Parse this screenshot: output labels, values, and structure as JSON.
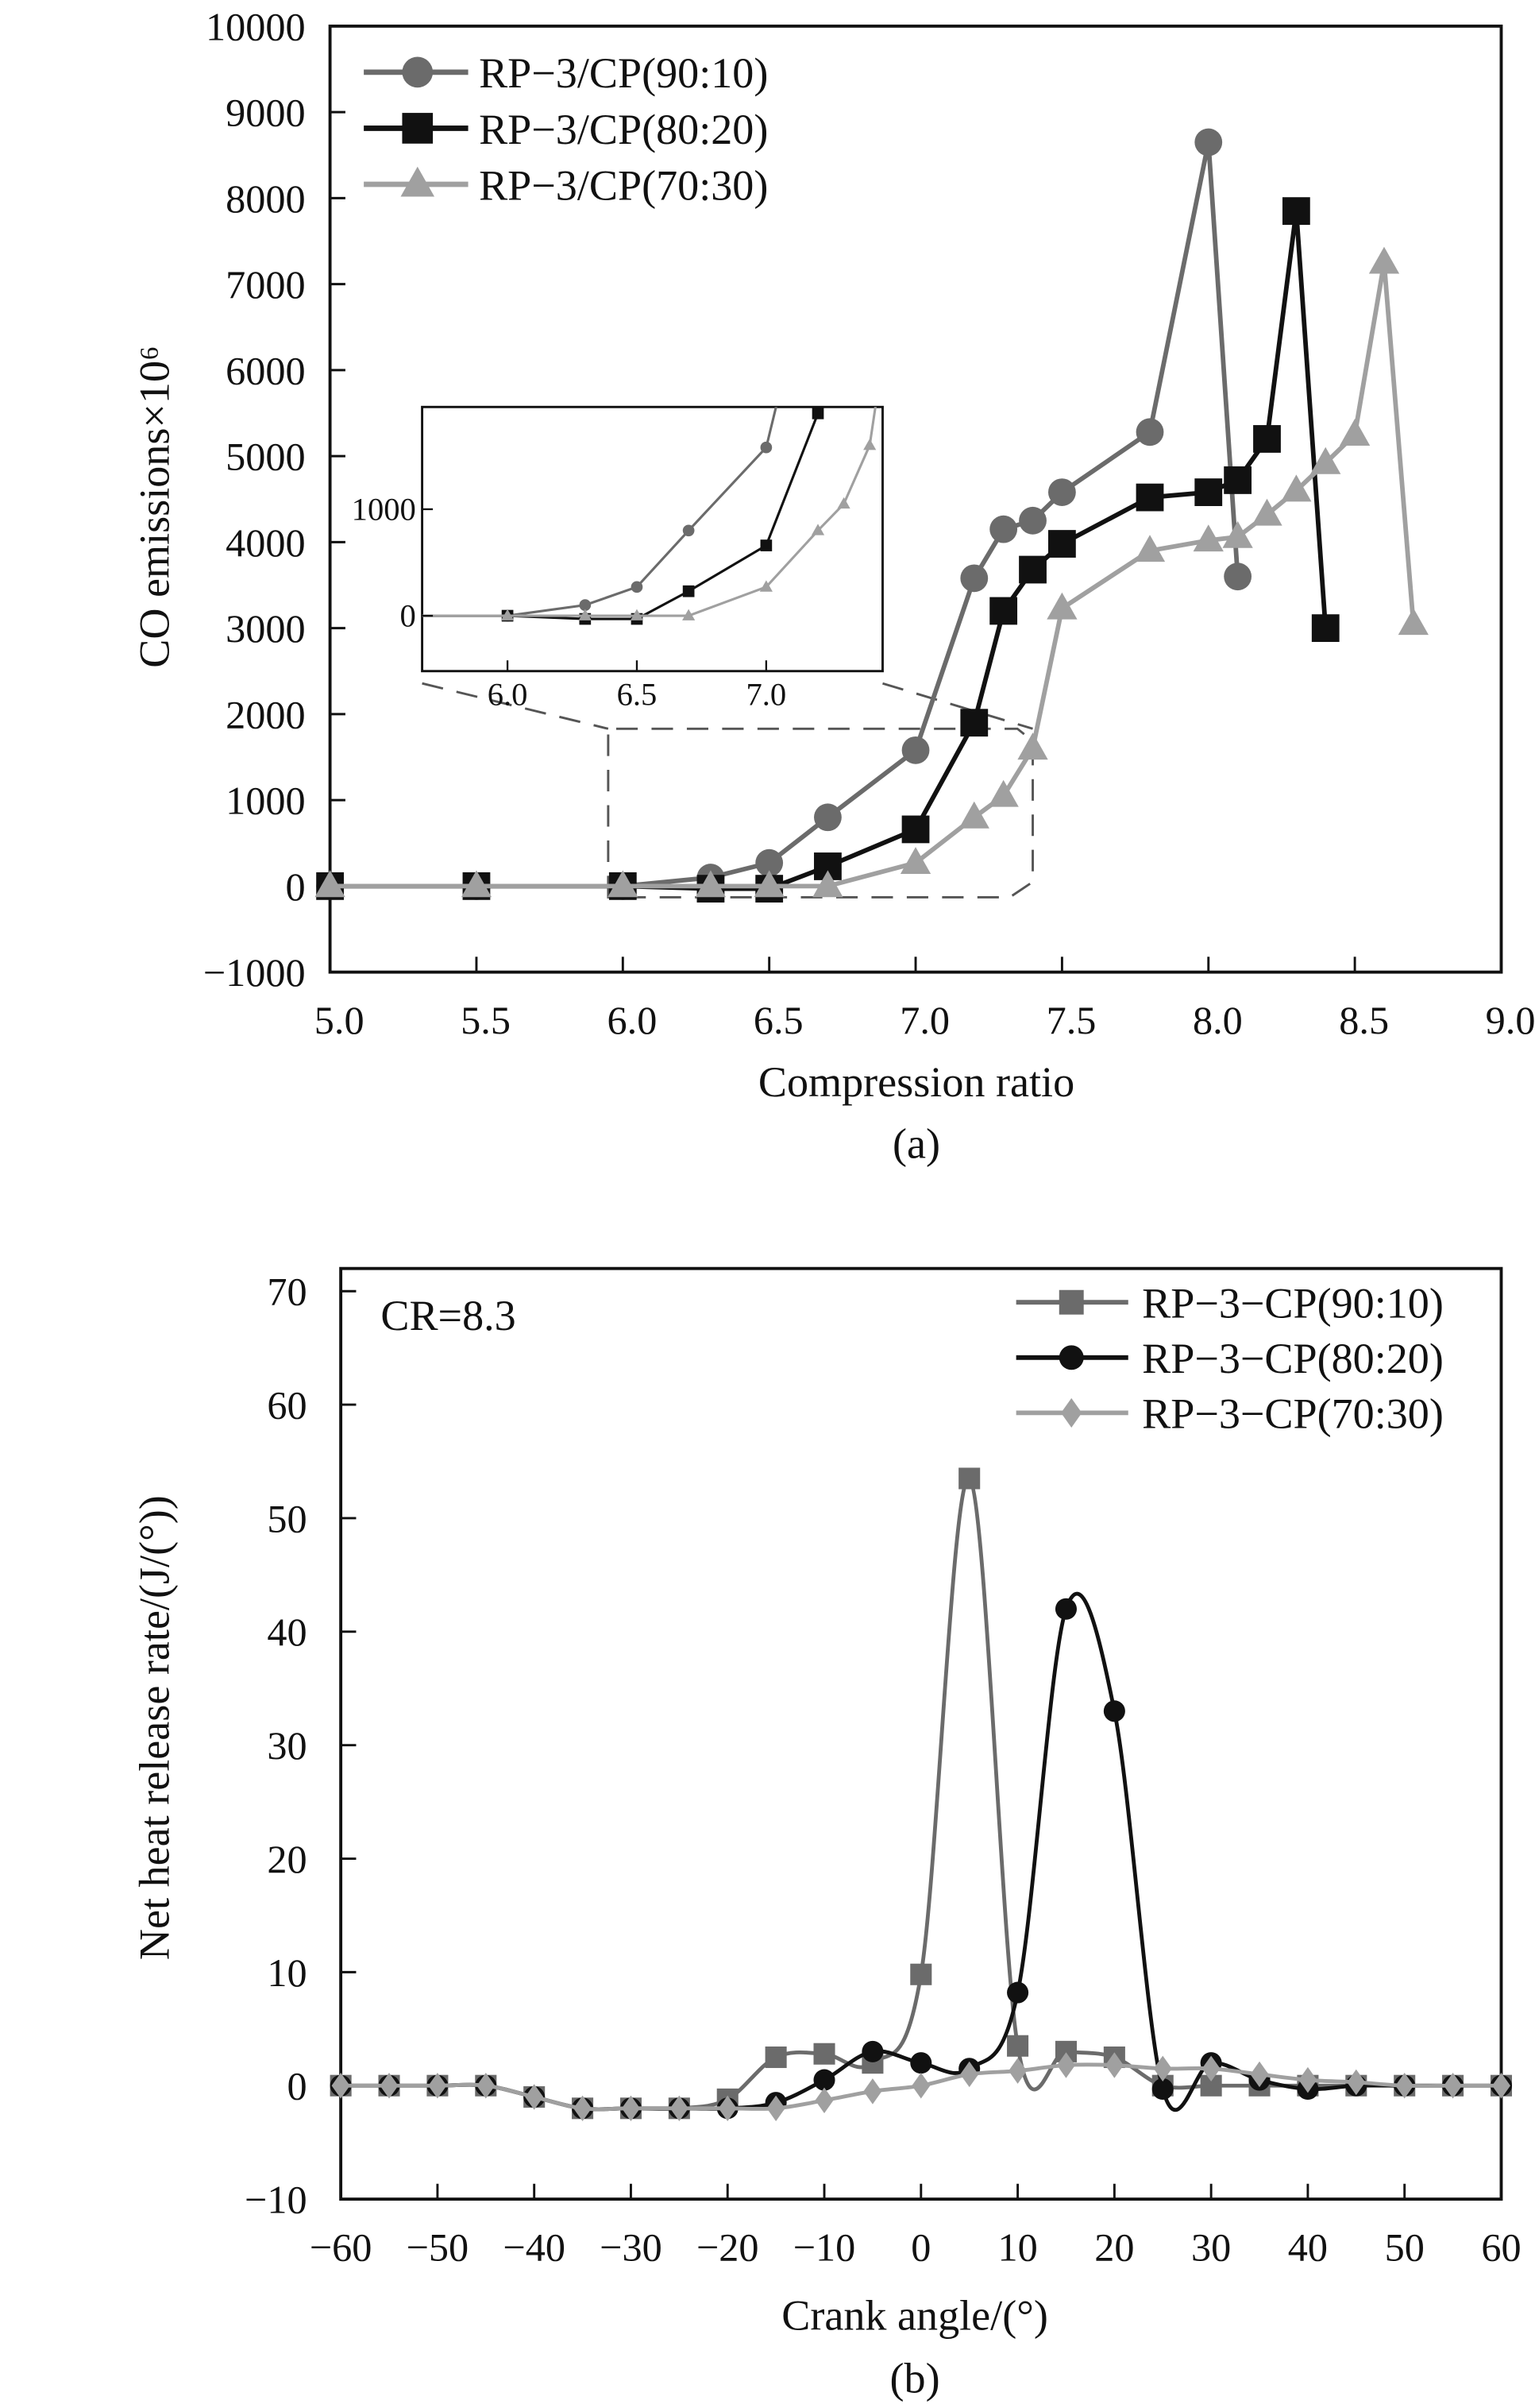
{
  "chart_data": [
    {
      "type": "line",
      "panel_label": "(a)",
      "xlabel": "Compression ratio",
      "ylabel": "CO emissions×10⁶",
      "xlim": [
        5.0,
        9.0
      ],
      "ylim": [
        -1000,
        10000
      ],
      "xticks": [
        "5.0",
        "5.5",
        "6.0",
        "6.5",
        "7.0",
        "7.5",
        "8.0",
        "8.5",
        "9.0"
      ],
      "yticks": [
        "−1000",
        "0",
        "1000",
        "2000",
        "3000",
        "4000",
        "5000",
        "6000",
        "7000",
        "8000",
        "9000",
        "10000"
      ],
      "legend_position": "top-left",
      "series": [
        {
          "name": "RP−3/CP(90:10)",
          "color": "#6b6b6b",
          "marker": "circle",
          "x": [
            5.0,
            5.5,
            6.0,
            6.3,
            6.5,
            6.7,
            7.0,
            7.2,
            7.3,
            7.4,
            7.5,
            7.8,
            8.0,
            8.1
          ],
          "y": [
            0,
            0,
            0,
            100,
            270,
            800,
            1580,
            3580,
            4150,
            4250,
            4580,
            5280,
            8650,
            3600
          ]
        },
        {
          "name": "RP−3/CP(80:20)",
          "color": "#111111",
          "marker": "square",
          "x": [
            5.0,
            5.5,
            6.0,
            6.3,
            6.5,
            6.7,
            7.0,
            7.2,
            7.3,
            7.4,
            7.5,
            7.8,
            8.0,
            8.1,
            8.2,
            8.3,
            8.4
          ],
          "y": [
            0,
            0,
            0,
            -30,
            -30,
            230,
            660,
            1900,
            3200,
            3680,
            3980,
            4520,
            4580,
            4720,
            5200,
            7850,
            3000
          ]
        },
        {
          "name": "RP−3/CP(70:30)",
          "color": "#a0a0a0",
          "marker": "triangle",
          "x": [
            5.0,
            5.5,
            6.0,
            6.3,
            6.5,
            6.7,
            7.0,
            7.2,
            7.3,
            7.4,
            7.5,
            7.8,
            8.0,
            8.1,
            8.2,
            8.3,
            8.4,
            8.5,
            8.6,
            8.7
          ],
          "y": [
            0,
            0,
            0,
            0,
            0,
            0,
            270,
            800,
            1050,
            1600,
            3230,
            3900,
            4020,
            4060,
            4320,
            4600,
            4920,
            5250,
            7250,
            3050
          ]
        }
      ],
      "inset": {
        "xlim": [
          5.67,
          7.45
        ],
        "ylim": [
          -520,
          1960
        ],
        "xticks": [
          "6.0",
          "6.5",
          "7.0"
        ],
        "yticks": [
          "0",
          "1000"
        ],
        "zoom_region": {
          "x": [
            5.95,
            7.4
          ],
          "y": [
            -130,
            1830
          ]
        }
      }
    },
    {
      "type": "line",
      "panel_label": "(b)",
      "annotation": "CR=8.3",
      "xlabel": "Crank angle/(°)",
      "ylabel": "Net heat release rate/(J/(°))",
      "xlim": [
        -60,
        60
      ],
      "ylim": [
        -10,
        72
      ],
      "xticks": [
        "−60",
        "−50",
        "−40",
        "−30",
        "−20",
        "−10",
        "0",
        "10",
        "20",
        "30",
        "40",
        "50",
        "60"
      ],
      "yticks": [
        "−10",
        "0",
        "10",
        "20",
        "30",
        "40",
        "50",
        "60",
        "70"
      ],
      "legend_position": "top-right",
      "x": [
        -60,
        -55,
        -50,
        -45,
        -40,
        -35,
        -30,
        -25,
        -20,
        -15,
        -10,
        -5,
        0,
        5,
        10,
        15,
        20,
        25,
        30,
        35,
        40,
        45,
        50,
        55,
        60
      ],
      "series": [
        {
          "name": "RP−3−CP(90:10)",
          "color": "#6b6b6b",
          "marker": "square",
          "y": [
            0,
            0,
            0,
            0,
            -1,
            -2,
            -2,
            -2,
            -1.2,
            2.5,
            2.8,
            2,
            9.8,
            53.5,
            3.5,
            3,
            2.5,
            0,
            0,
            0,
            0,
            0,
            0,
            0,
            0
          ]
        },
        {
          "name": "RP−3−CP(80:20)",
          "color": "#111111",
          "marker": "circle",
          "y": [
            0,
            0,
            0,
            0,
            -1,
            -2,
            -2,
            -2,
            -2,
            -1.5,
            0.5,
            3,
            2,
            1.5,
            8.2,
            42,
            33,
            -0.3,
            2,
            0.5,
            -0.3,
            0,
            0,
            0,
            0
          ]
        },
        {
          "name": "RP−3−CP(70:30)",
          "color": "#a0a0a0",
          "marker": "diamond",
          "y": [
            0,
            0,
            0,
            0,
            -1,
            -2,
            -2,
            -2,
            -2,
            -2,
            -1.3,
            -0.5,
            0,
            1,
            1.3,
            1.8,
            1.8,
            1.5,
            1.5,
            1,
            0.5,
            0.3,
            0,
            0,
            0
          ]
        }
      ]
    }
  ]
}
